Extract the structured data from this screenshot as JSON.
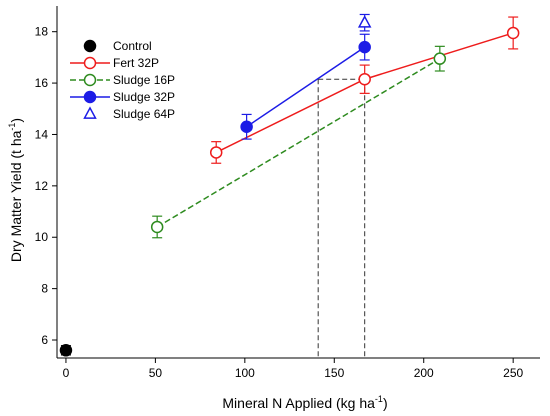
{
  "chart_data": {
    "type": "scatter",
    "xlabel": "Mineral N Applied (kg ha",
    "xlabel_sup": "-1",
    "xlabel_end": ")",
    "ylabel": "Dry Matter Yield (t ha",
    "ylabel_sup": "-1",
    "ylabel_end": ")",
    "xlim": [
      -5,
      265
    ],
    "ylim": [
      5.3,
      19
    ],
    "x_ticks": [
      0,
      50,
      100,
      150,
      200,
      250
    ],
    "x_tick_labels": [
      "0",
      "50",
      "100",
      "150",
      "200",
      "250"
    ],
    "y_ticks": [
      6,
      8,
      10,
      12,
      14,
      16,
      18
    ],
    "y_tick_labels": [
      "6",
      "8",
      "10",
      "12",
      "14",
      "16",
      "18"
    ],
    "grid": false,
    "legend_position": "top-left",
    "series": [
      {
        "name": "Control",
        "color": "#000000",
        "marker": "circle",
        "filled": true,
        "line": "none",
        "points": [
          {
            "x": 0,
            "y": 5.6,
            "err": 0.18
          }
        ]
      },
      {
        "name": "Fert 32P",
        "color": "#ee1c1c",
        "marker": "circle",
        "filled": false,
        "line": "solid",
        "points": [
          {
            "x": 84,
            "y": 13.3,
            "err": 0.42
          },
          {
            "x": 167,
            "y": 16.15,
            "err": 0.55
          },
          {
            "x": 250,
            "y": 17.95,
            "err": 0.62
          }
        ]
      },
      {
        "name": "Sludge 16P",
        "color": "#2e8b1f",
        "marker": "circle",
        "filled": false,
        "line": "dashed",
        "points": [
          {
            "x": 51,
            "y": 10.4,
            "err": 0.42
          },
          {
            "x": 209,
            "y": 16.95,
            "err": 0.48
          }
        ]
      },
      {
        "name": "Sludge 32P",
        "color": "#1c1ce6",
        "marker": "circle",
        "filled": true,
        "line": "solid",
        "points": [
          {
            "x": 101,
            "y": 14.3,
            "err": 0.48
          },
          {
            "x": 167,
            "y": 17.4,
            "err": 0.5
          }
        ]
      },
      {
        "name": "Sludge 64P",
        "color": "#1c1ce6",
        "marker": "triangle",
        "filled": false,
        "line": "none",
        "points": [
          {
            "x": 167,
            "y": 18.35,
            "err": 0.32
          }
        ]
      }
    ],
    "reference_lines": {
      "color": "#333333",
      "style": "dashed",
      "y_level": 16.15,
      "x_values": [
        141,
        167
      ]
    }
  }
}
